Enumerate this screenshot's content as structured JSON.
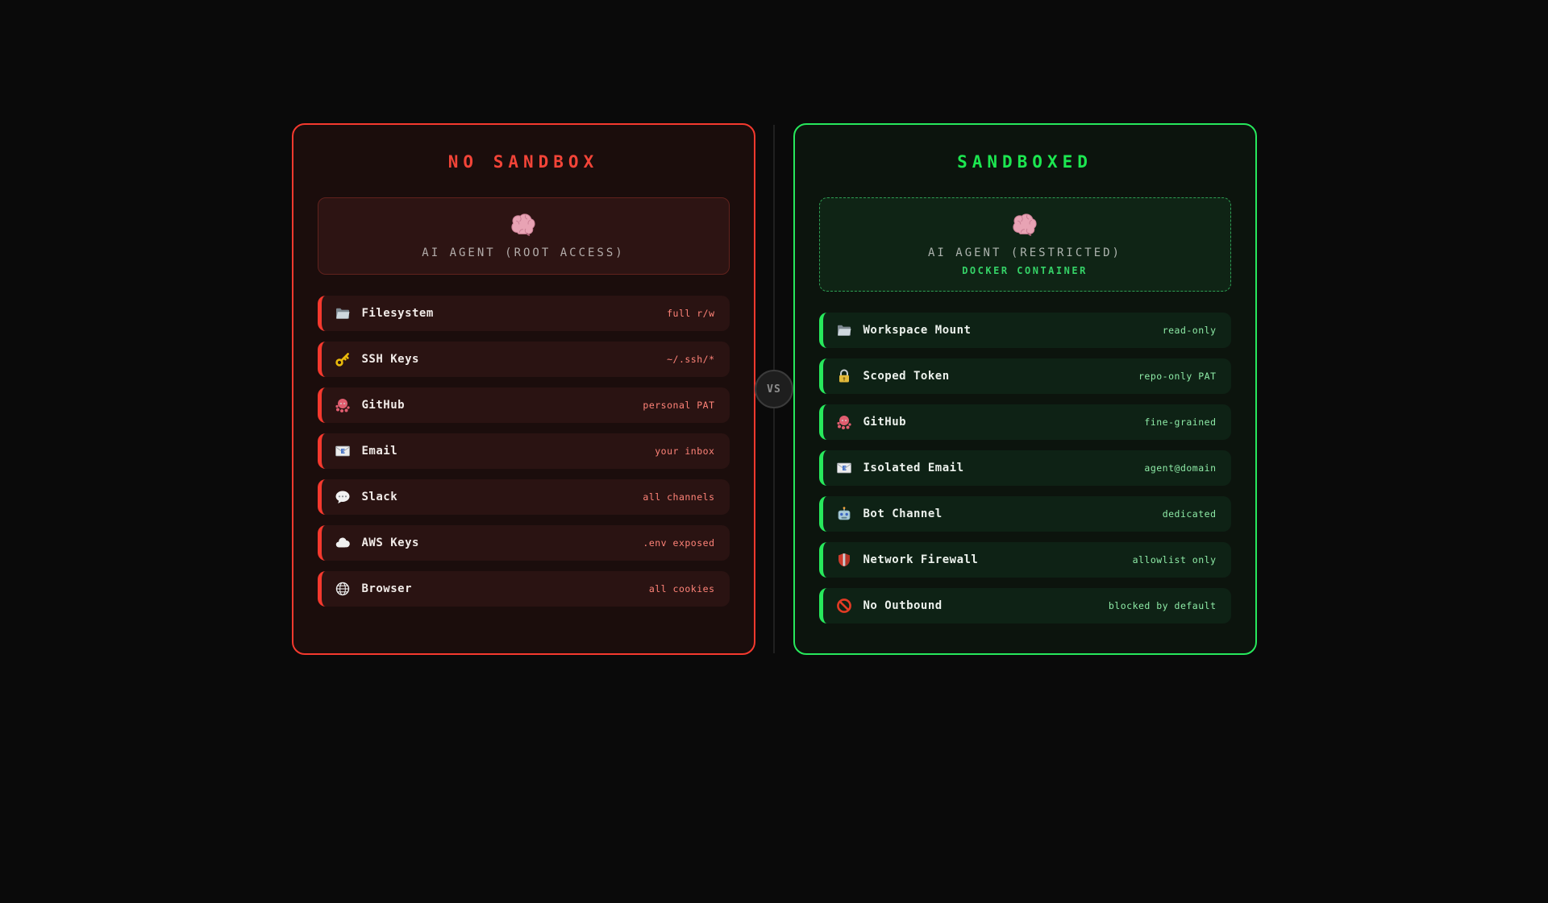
{
  "vs_badge": {
    "label": "VS"
  },
  "colors": {
    "background": "#0a0a0a",
    "red_accent": "#f5392e",
    "red_title": "#f24438",
    "red_row_bg": "#2a1312",
    "red_value_text": "#ff8378",
    "green_accent": "#27e85c",
    "green_title": "#1ce750",
    "green_row_bg": "#0e2215",
    "green_value_text": "#8deaa6",
    "docker_label_text": "#35d267",
    "vs_text": "#8e8e8e"
  },
  "panels": [
    {
      "id": "no-sandbox",
      "title": "NO SANDBOX",
      "agent": {
        "icon": "brain-icon",
        "label": "AI AGENT (ROOT ACCESS)",
        "sublabel": null
      },
      "rows": [
        {
          "icon": "folder-icon",
          "label": "Filesystem",
          "value": "full r/w"
        },
        {
          "icon": "key-icon",
          "label": "SSH Keys",
          "value": "~/.ssh/*"
        },
        {
          "icon": "octopus-icon",
          "label": "GitHub",
          "value": "personal PAT"
        },
        {
          "icon": "email-icon",
          "label": "Email",
          "value": "your inbox"
        },
        {
          "icon": "speech-balloon-icon",
          "label": "Slack",
          "value": "all channels"
        },
        {
          "icon": "cloud-icon",
          "label": "AWS Keys",
          "value": ".env exposed"
        },
        {
          "icon": "globe-icon",
          "label": "Browser",
          "value": "all cookies"
        }
      ]
    },
    {
      "id": "sandboxed",
      "title": "SANDBOXED",
      "agent": {
        "icon": "brain-icon",
        "label": "AI AGENT (RESTRICTED)",
        "sublabel": "DOCKER CONTAINER"
      },
      "rows": [
        {
          "icon": "folder-icon",
          "label": "Workspace Mount",
          "value": "read-only"
        },
        {
          "icon": "lock-icon",
          "label": "Scoped Token",
          "value": "repo-only PAT"
        },
        {
          "icon": "octopus-icon",
          "label": "GitHub",
          "value": "fine-grained"
        },
        {
          "icon": "email-icon",
          "label": "Isolated Email",
          "value": "agent@domain"
        },
        {
          "icon": "robot-icon",
          "label": "Bot Channel",
          "value": "dedicated"
        },
        {
          "icon": "shield-icon",
          "label": "Network Firewall",
          "value": "allowlist only"
        },
        {
          "icon": "no-entry-icon",
          "label": "No Outbound",
          "value": "blocked by default"
        }
      ]
    }
  ]
}
